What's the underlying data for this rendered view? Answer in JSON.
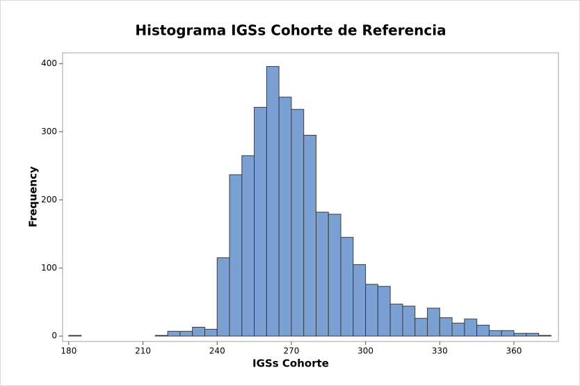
{
  "chart_data": {
    "type": "histogram",
    "title": "Histograma IGSs Cohorte de Referencia",
    "x_label": "IGSs Cohorte",
    "y_label": "Frequency",
    "bins": [
      180,
      185,
      190,
      195,
      200,
      205,
      210,
      215,
      220,
      225,
      230,
      235,
      240,
      245,
      250,
      255,
      260,
      265,
      270,
      275,
      280,
      285,
      290,
      295,
      300,
      305,
      310,
      315,
      320,
      325,
      330,
      335,
      340,
      345,
      350,
      355,
      360,
      365,
      370,
      375
    ],
    "values": [
      1,
      0,
      0,
      0,
      0,
      0,
      0,
      1,
      7,
      7,
      13,
      10,
      115,
      237,
      265,
      336,
      396,
      351,
      333,
      295,
      182,
      179,
      145,
      105,
      76,
      73,
      47,
      44,
      26,
      41,
      27,
      19,
      25,
      16,
      8,
      8,
      4,
      4,
      1
    ],
    "color": "#7ba0d4",
    "xlim": [
      177.5,
      378
    ],
    "ylim": [
      -8,
      416
    ],
    "xticks": [
      180,
      210,
      240,
      270,
      300,
      330,
      360
    ],
    "yticks": [
      0,
      100,
      200,
      300,
      400
    ]
  }
}
